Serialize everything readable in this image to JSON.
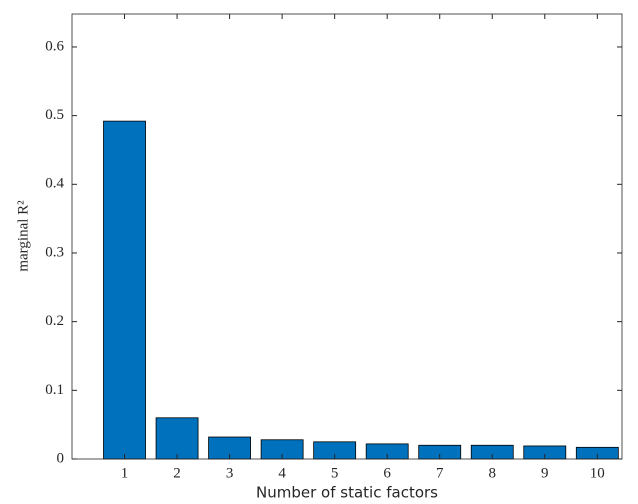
{
  "chart_data": {
    "type": "bar",
    "x_label": "Number of static factors",
    "y_label": "marginal R²",
    "x": [
      1,
      2,
      3,
      4,
      5,
      6,
      7,
      8,
      9,
      10
    ],
    "values": [
      0.492,
      0.06,
      0.032,
      0.028,
      0.025,
      0.022,
      0.02,
      0.02,
      0.019,
      0.017
    ],
    "color": "#0072bd",
    "xlim": [
      0,
      10.47
    ],
    "xticks": [
      1,
      2,
      3,
      4,
      5,
      6,
      7,
      8,
      9,
      10
    ],
    "ylim": [
      0,
      0.648
    ],
    "yticks": [
      0,
      0.1,
      0.2,
      0.3,
      0.4,
      0.5,
      0.6
    ],
    "grid": false
  }
}
